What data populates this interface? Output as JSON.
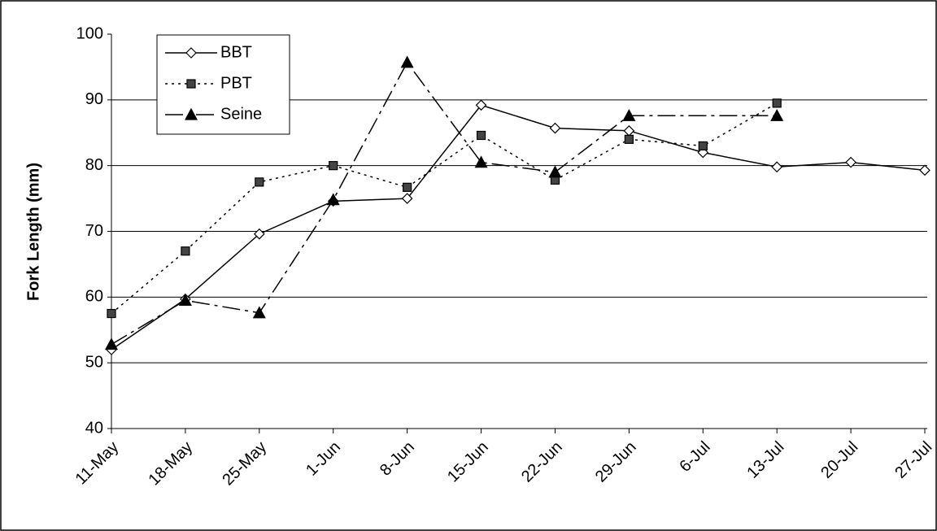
{
  "chart_data": {
    "type": "line",
    "y_label": "Fork Length (mm)",
    "categories": [
      "11-May",
      "18-May",
      "25-May",
      "1-Jun",
      "8-Jun",
      "15-Jun",
      "22-Jun",
      "29-Jun",
      "6-Jul",
      "13-Jul",
      "20-Jul",
      "27-Jul"
    ],
    "ylim": [
      40,
      100
    ],
    "yticks": [
      40,
      50,
      60,
      70,
      80,
      90,
      100
    ],
    "grid": true,
    "legend": "upper left",
    "series": [
      {
        "name": "BBT",
        "color": "#000000",
        "marker": "diamond",
        "line": "solid",
        "x": [
          "11-May",
          "18-May",
          "25-May",
          "1-Jun",
          "8-Jun",
          "15-Jun",
          "22-Jun",
          "29-Jun",
          "6-Jul",
          "13-Jul",
          "20-Jul",
          "27-Jul"
        ],
        "values": [
          52,
          59.7,
          69.6,
          74.6,
          75,
          89.2,
          85.7,
          85.3,
          82,
          79.8,
          80.5,
          79.3
        ]
      },
      {
        "name": "PBT",
        "color": "#000000",
        "marker": "square",
        "line": "dotted",
        "x": [
          "11-May",
          "18-May",
          "25-May",
          "1-Jun",
          "8-Jun",
          "15-Jun",
          "22-Jun",
          "29-Jun",
          "6-Jul",
          "13-Jul"
        ],
        "values": [
          57.5,
          67,
          77.5,
          80,
          76.7,
          84.6,
          77.8,
          84,
          83,
          89.5
        ]
      },
      {
        "name": "Seine",
        "color": "#000000",
        "marker": "triangle",
        "line": "dashdot",
        "x": [
          "11-May",
          "18-May",
          "25-May",
          "1-Jun",
          "8-Jun",
          "15-Jun",
          "22-Jun",
          "29-Jun",
          "13-Jul"
        ],
        "values": [
          52.8,
          59.5,
          57.6,
          74.8,
          95.7,
          80.5,
          79,
          87.6,
          87.6
        ]
      }
    ]
  }
}
